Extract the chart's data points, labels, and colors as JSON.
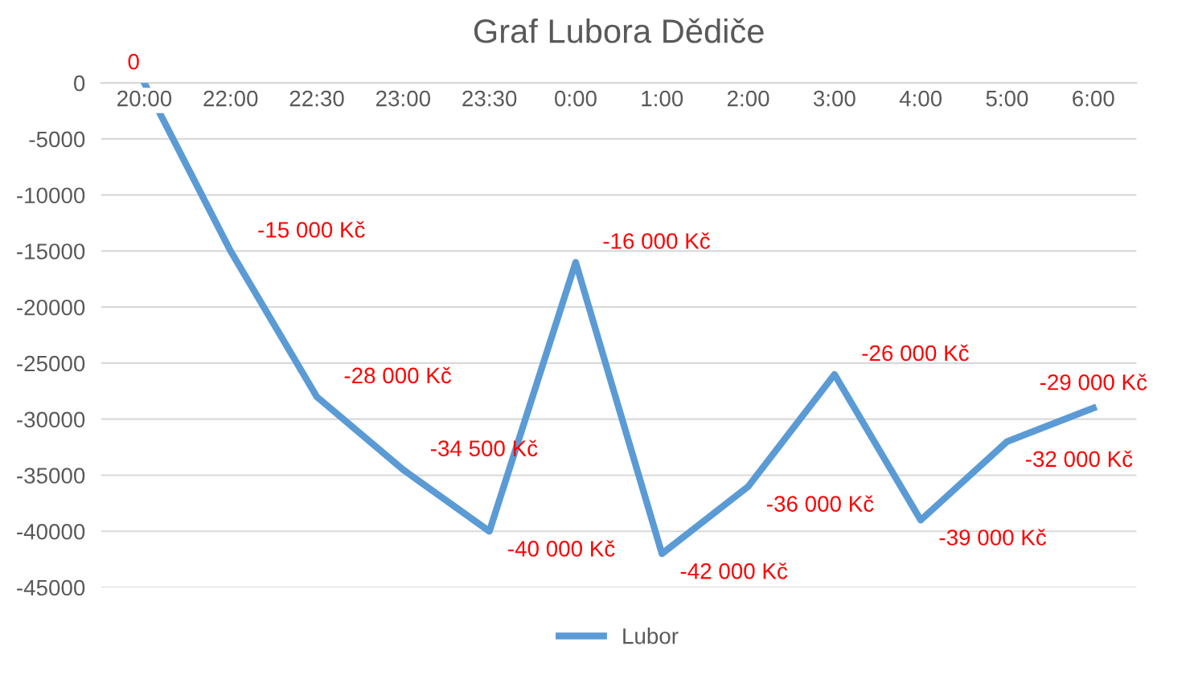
{
  "chart_data": {
    "type": "line",
    "title": "Graf Lubora Dědiče",
    "categories": [
      "20:00",
      "22:00",
      "22:30",
      "23:00",
      "23:30",
      "0:00",
      "1:00",
      "2:00",
      "3:00",
      "4:00",
      "5:00",
      "6:00"
    ],
    "series": [
      {
        "name": "Lubor",
        "color": "#5b9bd5",
        "values": [
          0,
          -15000,
          -28000,
          -34500,
          -40000,
          -16000,
          -42000,
          -36000,
          -26000,
          -39000,
          -32000,
          -29000
        ],
        "value_labels": [
          "0",
          "-15 000 Kč",
          "-28 000 Kč",
          "-34 500 Kč",
          "-40 000 Kč",
          "-16 000 Kč",
          "-42 000 Kč",
          "-36 000 Kč",
          "-26 000 Kč",
          "-39 000 Kč",
          "-32 000 Kč",
          "-29 000 Kč"
        ]
      }
    ],
    "ylim": [
      -45000,
      0
    ],
    "yticks": [
      0,
      -5000,
      -10000,
      -15000,
      -20000,
      -25000,
      -30000,
      -35000,
      -40000,
      -45000
    ],
    "grid": "y",
    "legend": "bottom",
    "marker": "none",
    "line_style": "solid"
  }
}
